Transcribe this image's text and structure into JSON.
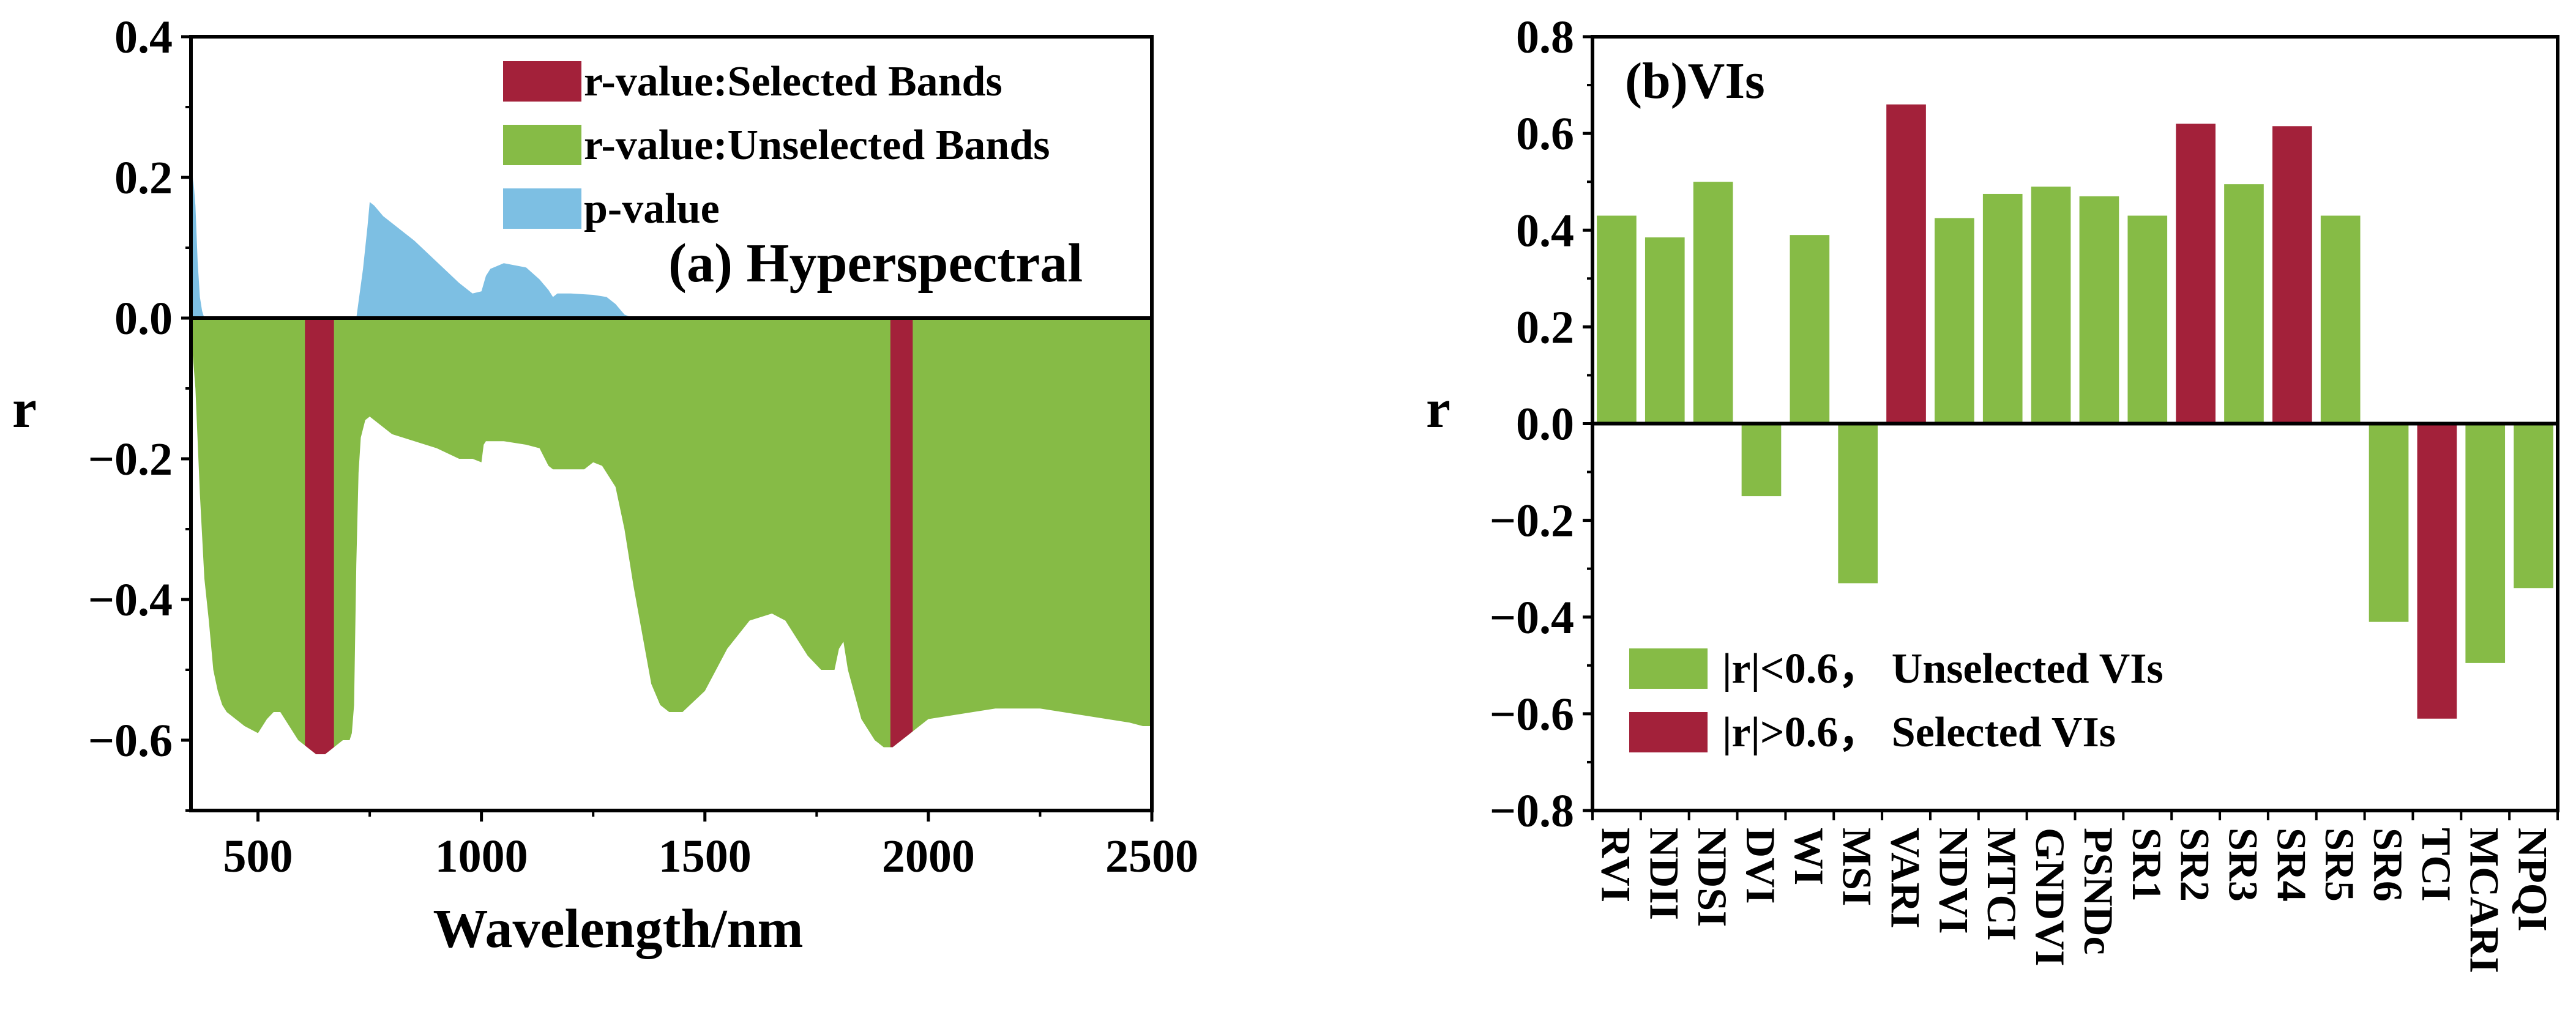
{
  "colors": {
    "selected": "#A3213A",
    "unselected": "#86BB46",
    "pvalue": "#7DBFE3",
    "axis": "#000000"
  },
  "chart_data": [
    {
      "type": "area",
      "annotation": "(a) Hyperspectral",
      "xlabel": "Wavelength/nm",
      "ylabel": "r",
      "xlim": [
        350,
        2500
      ],
      "ylim": [
        -0.7,
        0.4
      ],
      "xticks": [
        500,
        1000,
        1500,
        2000,
        2500
      ],
      "yticks": [
        0.4,
        0.2,
        0.0,
        -0.2,
        -0.4,
        -0.6
      ],
      "ytick_labels": [
        "0.4",
        "0.2",
        "0.0",
        "−0.2",
        "−0.4",
        "−0.6"
      ],
      "legend": {
        "placement": "top-right",
        "items": [
          {
            "key": "selected",
            "label": "r-value:Selected Bands"
          },
          {
            "key": "unselected",
            "label": "r-value:Unselected Bands"
          },
          {
            "key": "pvalue",
            "label": "p-value"
          }
        ]
      },
      "series": [
        {
          "name": "r-value:Unselected Bands",
          "x": [
            350,
            360,
            370,
            380,
            390,
            400,
            410,
            420,
            430,
            450,
            470,
            500,
            520,
            535,
            550,
            570,
            590,
            610,
            630,
            650,
            670,
            690,
            700,
            705,
            710,
            715,
            720,
            725,
            730,
            740,
            750,
            760,
            780,
            800,
            850,
            900,
            950,
            980,
            1000,
            1005,
            1010,
            1050,
            1100,
            1130,
            1150,
            1160,
            1170,
            1200,
            1230,
            1250,
            1270,
            1300,
            1320,
            1340,
            1360,
            1380,
            1400,
            1420,
            1450,
            1500,
            1550,
            1600,
            1650,
            1680,
            1700,
            1730,
            1760,
            1790,
            1800,
            1810,
            1820,
            1850,
            1880,
            1900,
            1920,
            1940,
            1960,
            1980,
            2000,
            2050,
            2100,
            2150,
            2200,
            2250,
            2300,
            2350,
            2400,
            2450,
            2480,
            2500
          ],
          "values": [
            -0.02,
            -0.1,
            -0.25,
            -0.37,
            -0.43,
            -0.5,
            -0.53,
            -0.55,
            -0.56,
            -0.57,
            -0.58,
            -0.59,
            -0.57,
            -0.56,
            -0.56,
            -0.58,
            -0.6,
            -0.61,
            -0.62,
            -0.62,
            -0.61,
            -0.6,
            -0.6,
            -0.6,
            -0.59,
            -0.55,
            -0.35,
            -0.22,
            -0.17,
            -0.145,
            -0.14,
            -0.145,
            -0.155,
            -0.165,
            -0.175,
            -0.185,
            -0.2,
            -0.2,
            -0.205,
            -0.18,
            -0.175,
            -0.175,
            -0.18,
            -0.185,
            -0.21,
            -0.215,
            -0.215,
            -0.215,
            -0.215,
            -0.205,
            -0.21,
            -0.24,
            -0.3,
            -0.38,
            -0.45,
            -0.52,
            -0.55,
            -0.56,
            -0.56,
            -0.53,
            -0.47,
            -0.43,
            -0.42,
            -0.43,
            -0.45,
            -0.48,
            -0.5,
            -0.5,
            -0.47,
            -0.46,
            -0.5,
            -0.57,
            -0.6,
            -0.61,
            -0.61,
            -0.6,
            -0.59,
            -0.58,
            -0.57,
            -0.565,
            -0.56,
            -0.555,
            -0.555,
            -0.555,
            -0.56,
            -0.565,
            -0.57,
            -0.575,
            -0.58,
            -0.58
          ]
        },
        {
          "name": "r-value:Selected Bands",
          "bands": [
            [
              605,
              670
            ],
            [
              1915,
              1965
            ]
          ]
        },
        {
          "name": "p-value",
          "x": [
            350,
            355,
            360,
            365,
            370,
            375,
            380,
            700,
            720,
            735,
            745,
            750,
            760,
            780,
            800,
            850,
            900,
            950,
            980,
            1000,
            1010,
            1020,
            1050,
            1100,
            1130,
            1150,
            1160,
            1170,
            1200,
            1250,
            1280,
            1300,
            1320,
            1340
          ],
          "values": [
            0.0,
            0.2,
            0.16,
            0.08,
            0.03,
            0.01,
            0.0,
            0.0,
            0.0,
            0.07,
            0.13,
            0.165,
            0.16,
            0.145,
            0.135,
            0.11,
            0.08,
            0.05,
            0.035,
            0.038,
            0.06,
            0.07,
            0.078,
            0.072,
            0.055,
            0.04,
            0.03,
            0.035,
            0.035,
            0.033,
            0.03,
            0.02,
            0.005,
            0.0
          ]
        }
      ]
    },
    {
      "type": "bar",
      "annotation": "(b)VIs",
      "ylabel": "r",
      "ylim": [
        -0.8,
        0.8
      ],
      "yticks": [
        0.8,
        0.6,
        0.4,
        0.2,
        0.0,
        -0.2,
        -0.4,
        -0.6,
        -0.8
      ],
      "ytick_labels": [
        "0.8",
        "0.6",
        "0.4",
        "0.2",
        "0.0",
        "−0.2",
        "−0.4",
        "−0.6",
        "−0.8"
      ],
      "categories": [
        "RVI",
        "NDII",
        "NDSI",
        "DVI",
        "WI",
        "MSI",
        "VARI",
        "NDVI",
        "MTCI",
        "GNDVI",
        "PSNDc",
        "SR1",
        "SR2",
        "SR3",
        "SR4",
        "SR5",
        "SR6",
        "TCI",
        "MCARI",
        "NPQI"
      ],
      "values": [
        0.43,
        0.385,
        0.5,
        -0.15,
        0.39,
        -0.33,
        0.66,
        0.425,
        0.475,
        0.49,
        0.47,
        0.43,
        0.62,
        0.495,
        0.615,
        0.43,
        -0.41,
        -0.61,
        -0.495,
        -0.34
      ],
      "selected": [
        false,
        false,
        false,
        false,
        false,
        false,
        true,
        false,
        false,
        false,
        false,
        false,
        true,
        false,
        true,
        false,
        false,
        true,
        false,
        false
      ],
      "legend": {
        "placement": "bottom-left",
        "items": [
          {
            "key": "unselected",
            "label": "|r|<0.6， Unselected VIs"
          },
          {
            "key": "selected",
            "label": "|r|>0.6， Selected VIs"
          }
        ]
      }
    }
  ]
}
